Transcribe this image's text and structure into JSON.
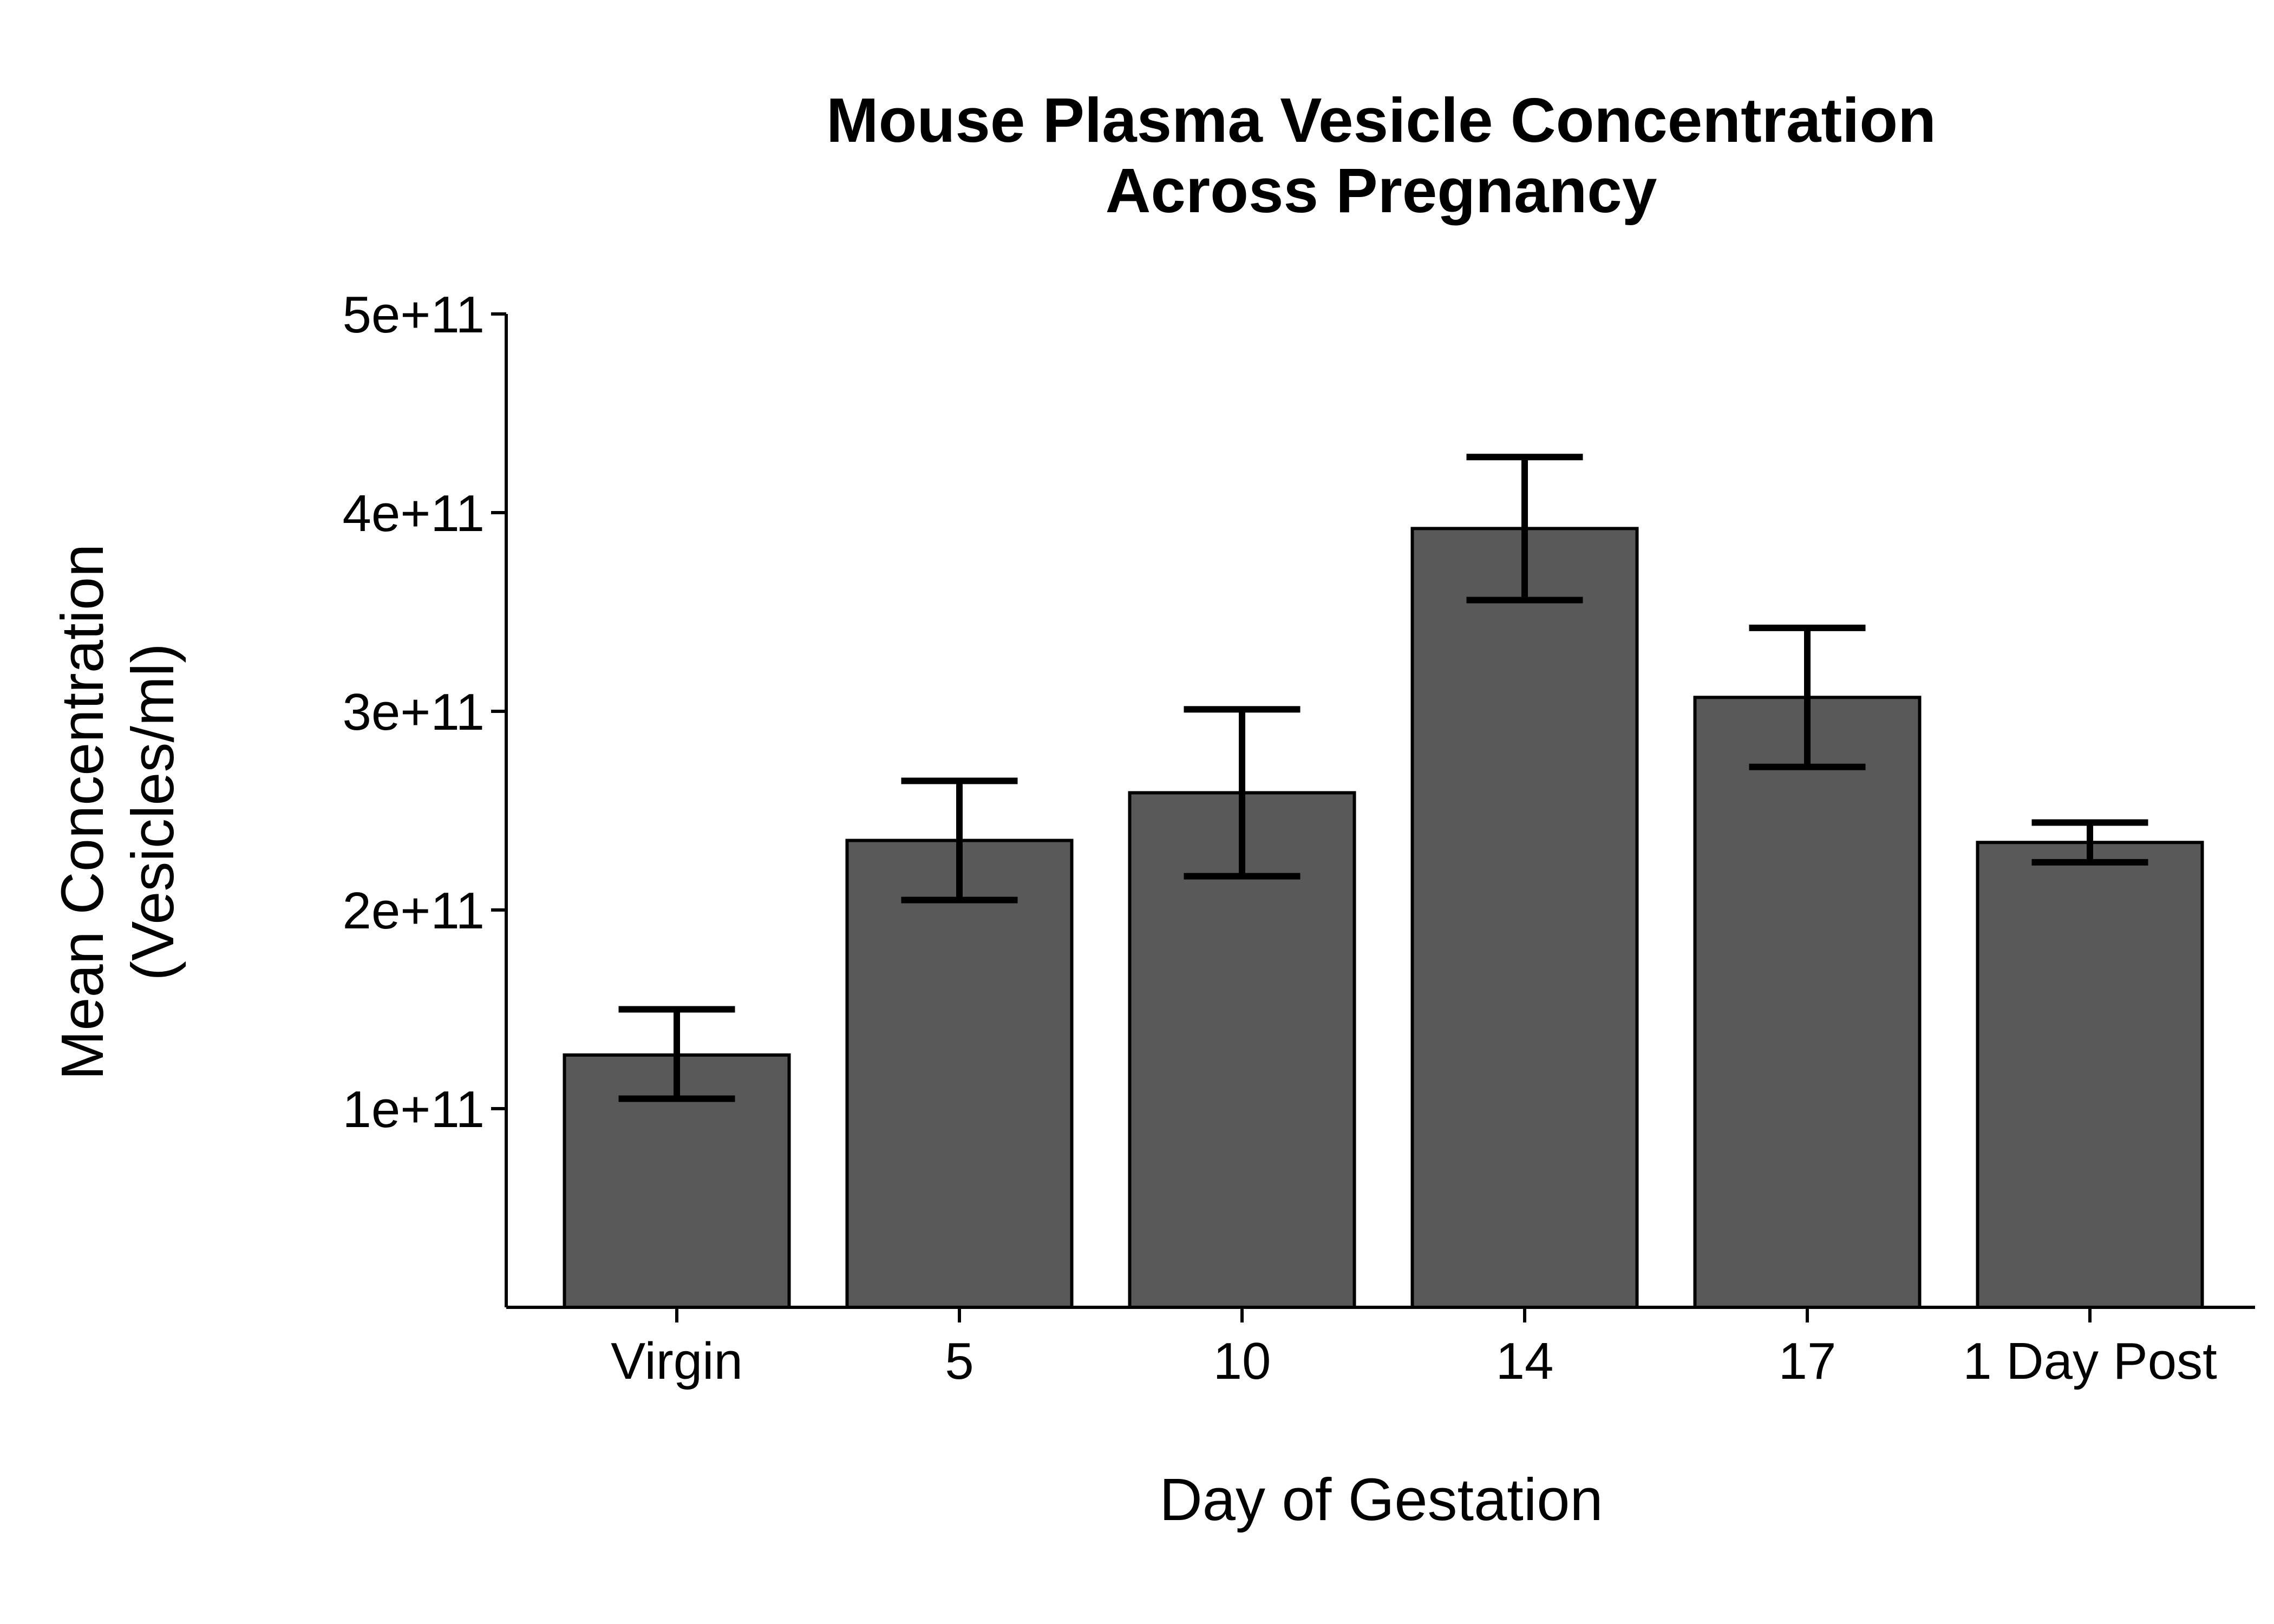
{
  "chart_data": {
    "type": "bar",
    "title": [
      "Mouse Plasma Vesicle Concentration",
      "Across Pregnancy"
    ],
    "xlabel": "Day of Gestation",
    "ylabel": [
      "Mean Concentration",
      "(Vesicles/ml)"
    ],
    "categories": [
      "Virgin",
      "5",
      "10",
      "14",
      "17",
      "1 Day Post"
    ],
    "values": [
      127000000000.0,
      235000000000.0,
      259000000000.0,
      392000000000.0,
      307000000000.0,
      234000000000.0
    ],
    "error_low": [
      105000000000.0,
      205000000000.0,
      217000000000.0,
      356000000000.0,
      272000000000.0,
      224000000000.0
    ],
    "error_high": [
      150000000000.0,
      265000000000.0,
      301000000000.0,
      428000000000.0,
      342000000000.0,
      244000000000.0
    ],
    "ylim": [
      0,
      500000000000.0
    ],
    "yticks": [
      100000000000.0,
      200000000000.0,
      300000000000.0,
      400000000000.0,
      500000000000.0
    ],
    "ytick_labels": [
      "1e+11",
      "2e+11",
      "3e+11",
      "4e+11",
      "5e+11"
    ],
    "grid": false,
    "bar_color": "#595959",
    "bar_edge_color": "#000000"
  }
}
